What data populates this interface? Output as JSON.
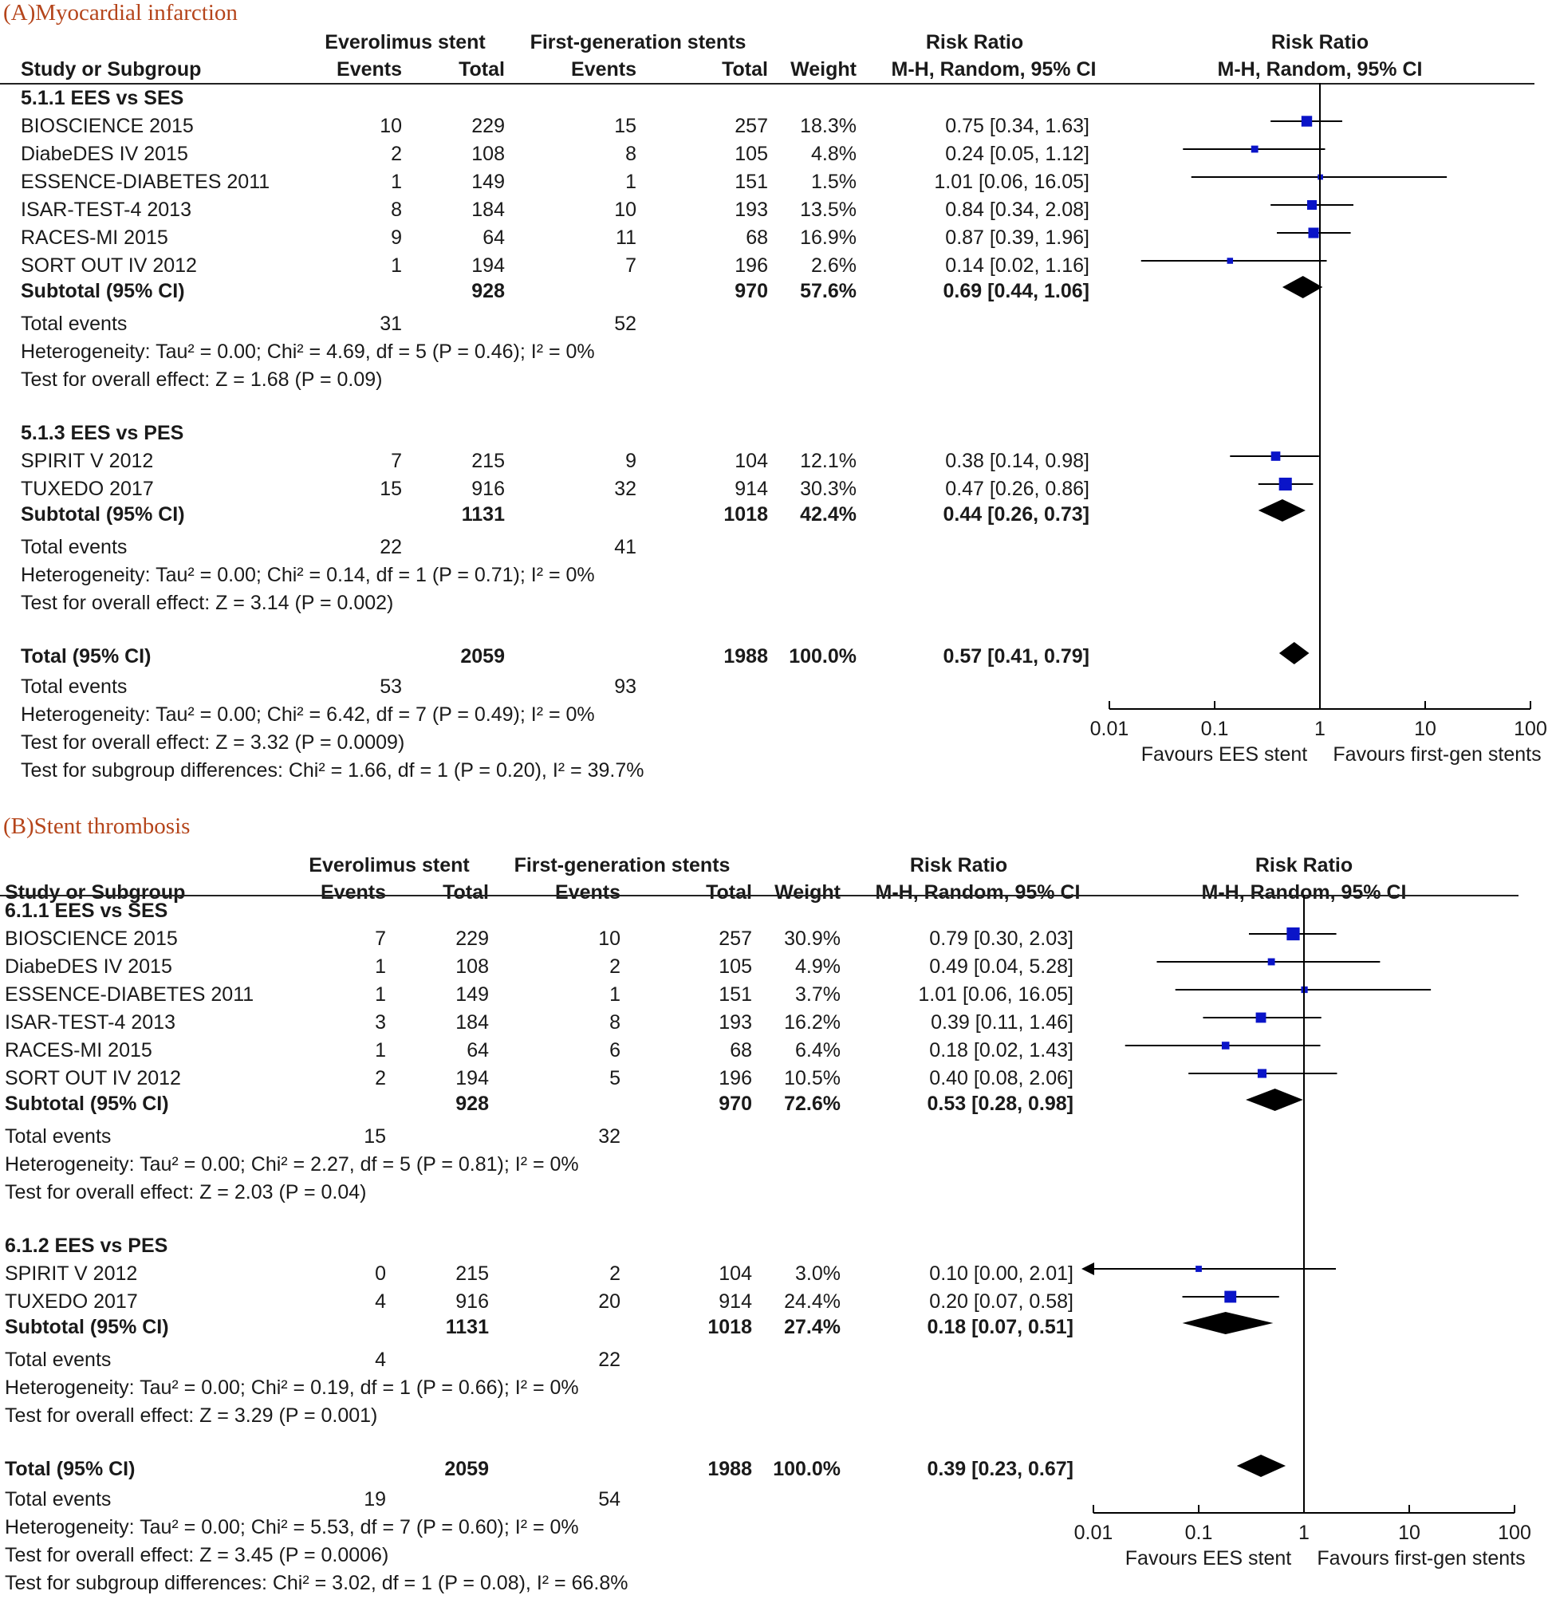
{
  "chart_data": [
    {
      "type": "forest",
      "title": "(A)Myocardial infarction",
      "headers": {
        "group_ees": "Everolimus stent",
        "group_first": "First-generation stents",
        "study": "Study or Subgroup",
        "events": "Events",
        "total": "Total",
        "weight": "Weight",
        "rr_title": "Risk Ratio",
        "rr_method": "M-H, Random, 95% CI"
      },
      "axis": {
        "scale": "log",
        "ticks": [
          0.01,
          0.1,
          1,
          10,
          100
        ],
        "tick_labels": [
          "0.01",
          "0.1",
          "1",
          "10",
          "100"
        ],
        "favours_left": "Favours EES stent",
        "favours_right": "Favours first-gen stents"
      },
      "subgroups": [
        {
          "label": "5.1.1 EES vs SES",
          "studies": [
            {
              "name": "BIOSCIENCE 2015",
              "e1": "10",
              "t1": "229",
              "e2": "15",
              "t2": "257",
              "weight": "18.3%",
              "ci_text": "0.75 [0.34, 1.63]",
              "rr": 0.75,
              "lo": 0.34,
              "hi": 1.63,
              "w": 18.3
            },
            {
              "name": "DiabeDES IV 2015",
              "e1": "2",
              "t1": "108",
              "e2": "8",
              "t2": "105",
              "weight": "4.8%",
              "ci_text": "0.24 [0.05, 1.12]",
              "rr": 0.24,
              "lo": 0.05,
              "hi": 1.12,
              "w": 4.8
            },
            {
              "name": "ESSENCE-DIABETES 2011",
              "e1": "1",
              "t1": "149",
              "e2": "1",
              "t2": "151",
              "weight": "1.5%",
              "ci_text": "1.01 [0.06, 16.05]",
              "rr": 1.01,
              "lo": 0.06,
              "hi": 16.05,
              "w": 1.5
            },
            {
              "name": "ISAR-TEST-4 2013",
              "e1": "8",
              "t1": "184",
              "e2": "10",
              "t2": "193",
              "weight": "13.5%",
              "ci_text": "0.84 [0.34, 2.08]",
              "rr": 0.84,
              "lo": 0.34,
              "hi": 2.08,
              "w": 13.5
            },
            {
              "name": "RACES-MI 2015",
              "e1": "9",
              "t1": "64",
              "e2": "11",
              "t2": "68",
              "weight": "16.9%",
              "ci_text": "0.87 [0.39, 1.96]",
              "rr": 0.87,
              "lo": 0.39,
              "hi": 1.96,
              "w": 16.9
            },
            {
              "name": "SORT OUT IV 2012",
              "e1": "1",
              "t1": "194",
              "e2": "7",
              "t2": "196",
              "weight": "2.6%",
              "ci_text": "0.14 [0.02, 1.16]",
              "rr": 0.14,
              "lo": 0.02,
              "hi": 1.16,
              "w": 2.6
            }
          ],
          "subtotal": {
            "label": "Subtotal (95% CI)",
            "t1": "928",
            "t2": "970",
            "weight": "57.6%",
            "ci_text": "0.69 [0.44, 1.06]",
            "rr": 0.69,
            "lo": 0.44,
            "hi": 1.06
          },
          "total_events": {
            "label": "Total events",
            "e1": "31",
            "e2": "52"
          },
          "heterogeneity": "Heterogeneity: Tau² = 0.00; Chi² = 4.69, df = 5 (P = 0.46); I² = 0%",
          "overall": "Test for overall effect: Z = 1.68 (P = 0.09)"
        },
        {
          "label": "5.1.3 EES vs PES",
          "studies": [
            {
              "name": "SPIRIT V 2012",
              "e1": "7",
              "t1": "215",
              "e2": "9",
              "t2": "104",
              "weight": "12.1%",
              "ci_text": "0.38 [0.14, 0.98]",
              "rr": 0.38,
              "lo": 0.14,
              "hi": 0.98,
              "w": 12.1
            },
            {
              "name": "TUXEDO 2017",
              "e1": "15",
              "t1": "916",
              "e2": "32",
              "t2": "914",
              "weight": "30.3%",
              "ci_text": "0.47 [0.26, 0.86]",
              "rr": 0.47,
              "lo": 0.26,
              "hi": 0.86,
              "w": 30.3
            }
          ],
          "subtotal": {
            "label": "Subtotal (95% CI)",
            "t1": "1131",
            "t2": "1018",
            "weight": "42.4%",
            "ci_text": "0.44 [0.26, 0.73]",
            "rr": 0.44,
            "lo": 0.26,
            "hi": 0.73
          },
          "total_events": {
            "label": "Total events",
            "e1": "22",
            "e2": "41"
          },
          "heterogeneity": "Heterogeneity: Tau² = 0.00; Chi² = 0.14, df = 1 (P = 0.71); I² = 0%",
          "overall": "Test for overall effect: Z = 3.14 (P = 0.002)"
        }
      ],
      "total": {
        "label": "Total (95% CI)",
        "t1": "2059",
        "t2": "1988",
        "weight": "100.0%",
        "ci_text": "0.57 [0.41, 0.79]",
        "rr": 0.57,
        "lo": 0.41,
        "hi": 0.79
      },
      "total_events": {
        "label": "Total events",
        "e1": "53",
        "e2": "93"
      },
      "heterogeneity": "Heterogeneity: Tau² = 0.00; Chi² = 6.42, df = 7 (P = 0.49); I² = 0%",
      "overall": "Test for overall effect: Z = 3.32 (P = 0.0009)",
      "subgroup_diff": "Test for subgroup differences: Chi² = 1.66, df = 1 (P = 0.20), I² = 39.7%"
    },
    {
      "type": "forest",
      "title": "(B)Stent thrombosis",
      "headers": {
        "group_ees": "Everolimus stent",
        "group_first": "First-generation stents",
        "study": "Study or Subgroup",
        "events": "Events",
        "total": "Total",
        "weight": "Weight",
        "rr_title": "Risk Ratio",
        "rr_method": "M-H, Random, 95% CI"
      },
      "axis": {
        "scale": "log",
        "ticks": [
          0.01,
          0.1,
          1,
          10,
          100
        ],
        "tick_labels": [
          "0.01",
          "0.1",
          "1",
          "10",
          "100"
        ],
        "favours_left": "Favours EES stent",
        "favours_right": "Favours first-gen stents"
      },
      "subgroups": [
        {
          "label": "6.1.1 EES vs SES",
          "studies": [
            {
              "name": "BIOSCIENCE 2015",
              "e1": "7",
              "t1": "229",
              "e2": "10",
              "t2": "257",
              "weight": "30.9%",
              "ci_text": "0.79 [0.30, 2.03]",
              "rr": 0.79,
              "lo": 0.3,
              "hi": 2.03,
              "w": 30.9
            },
            {
              "name": "DiabeDES IV 2015",
              "e1": "1",
              "t1": "108",
              "e2": "2",
              "t2": "105",
              "weight": "4.9%",
              "ci_text": "0.49 [0.04, 5.28]",
              "rr": 0.49,
              "lo": 0.04,
              "hi": 5.28,
              "w": 4.9
            },
            {
              "name": "ESSENCE-DIABETES 2011",
              "e1": "1",
              "t1": "149",
              "e2": "1",
              "t2": "151",
              "weight": "3.7%",
              "ci_text": "1.01 [0.06, 16.05]",
              "rr": 1.01,
              "lo": 0.06,
              "hi": 16.05,
              "w": 3.7
            },
            {
              "name": "ISAR-TEST-4 2013",
              "e1": "3",
              "t1": "184",
              "e2": "8",
              "t2": "193",
              "weight": "16.2%",
              "ci_text": "0.39 [0.11, 1.46]",
              "rr": 0.39,
              "lo": 0.11,
              "hi": 1.46,
              "w": 16.2
            },
            {
              "name": "RACES-MI 2015",
              "e1": "1",
              "t1": "64",
              "e2": "6",
              "t2": "68",
              "weight": "6.4%",
              "ci_text": "0.18 [0.02, 1.43]",
              "rr": 0.18,
              "lo": 0.02,
              "hi": 1.43,
              "w": 6.4
            },
            {
              "name": "SORT OUT IV 2012",
              "e1": "2",
              "t1": "194",
              "e2": "5",
              "t2": "196",
              "weight": "10.5%",
              "ci_text": "0.40 [0.08, 2.06]",
              "rr": 0.4,
              "lo": 0.08,
              "hi": 2.06,
              "w": 10.5
            }
          ],
          "subtotal": {
            "label": "Subtotal (95% CI)",
            "t1": "928",
            "t2": "970",
            "weight": "72.6%",
            "ci_text": "0.53 [0.28, 0.98]",
            "rr": 0.53,
            "lo": 0.28,
            "hi": 0.98
          },
          "total_events": {
            "label": "Total events",
            "e1": "15",
            "e2": "32"
          },
          "heterogeneity": "Heterogeneity: Tau² = 0.00; Chi² = 2.27, df = 5 (P = 0.81); I² = 0%",
          "overall": "Test for overall effect: Z = 2.03 (P = 0.04)"
        },
        {
          "label": "6.1.2 EES vs PES",
          "studies": [
            {
              "name": "SPIRIT V 2012",
              "e1": "0",
              "t1": "215",
              "e2": "2",
              "t2": "104",
              "weight": "3.0%",
              "ci_text": "0.10 [0.00, 2.01]",
              "rr": 0.1,
              "lo": 0.0,
              "hi": 2.01,
              "w": 3.0
            },
            {
              "name": "TUXEDO 2017",
              "e1": "4",
              "t1": "916",
              "e2": "20",
              "t2": "914",
              "weight": "24.4%",
              "ci_text": "0.20 [0.07, 0.58]",
              "rr": 0.2,
              "lo": 0.07,
              "hi": 0.58,
              "w": 24.4
            }
          ],
          "subtotal": {
            "label": "Subtotal (95% CI)",
            "t1": "1131",
            "t2": "1018",
            "weight": "27.4%",
            "ci_text": "0.18 [0.07, 0.51]",
            "rr": 0.18,
            "lo": 0.07,
            "hi": 0.51
          },
          "total_events": {
            "label": "Total events",
            "e1": "4",
            "e2": "22"
          },
          "heterogeneity": "Heterogeneity: Tau² = 0.00; Chi² = 0.19, df = 1 (P = 0.66); I² = 0%",
          "overall": "Test for overall effect: Z = 3.29 (P = 0.001)"
        }
      ],
      "total": {
        "label": "Total (95% CI)",
        "t1": "2059",
        "t2": "1988",
        "weight": "100.0%",
        "ci_text": "0.39 [0.23, 0.67]",
        "rr": 0.39,
        "lo": 0.23,
        "hi": 0.67
      },
      "total_events": {
        "label": "Total events",
        "e1": "19",
        "e2": "54"
      },
      "heterogeneity": "Heterogeneity: Tau² = 0.00; Chi² = 5.53, df = 7 (P = 0.60); I² = 0%",
      "overall": "Test for overall effect: Z = 3.45 (P = 0.0006)",
      "subgroup_diff": "Test for subgroup differences: Chi² = 3.02, df = 1 (P = 0.08), I² = 66.8%"
    }
  ],
  "colors": {
    "title": "#b5451b",
    "marker": "#0a14c8",
    "diamond": "#000000",
    "text": "#1a1a1a"
  }
}
